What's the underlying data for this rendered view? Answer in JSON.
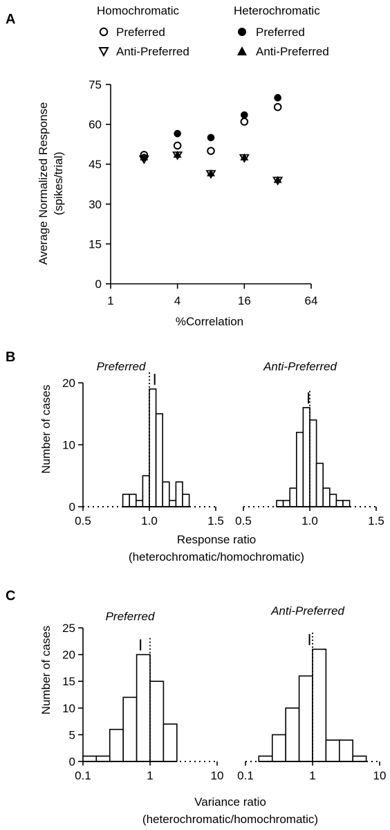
{
  "panels": {
    "A": {
      "letter": "A"
    },
    "B": {
      "letter": "B"
    },
    "C": {
      "letter": "C"
    }
  },
  "legend": {
    "homo_title": "Homochromatic",
    "hetero_title": "Heterochromatic",
    "homo_pref": "Preferred",
    "homo_anti": "Anti-Preferred",
    "hetero_pref": "Preferred",
    "hetero_anti": "Anti-Preferred"
  },
  "colors": {
    "ink": "#000000",
    "background": "#ffffff"
  },
  "chart_data": [
    {
      "id": "A",
      "type": "scatter",
      "xlabel": "%Correlation",
      "ylabel_line1": "Average Normalized Response",
      "ylabel_line2": "(spikes/trial)",
      "x_scale": "log2",
      "xlim": [
        1,
        64
      ],
      "ylim": [
        0,
        75
      ],
      "xticks": [
        1,
        4,
        16,
        64
      ],
      "xtick_labels": [
        "1",
        "4",
        "16",
        "64"
      ],
      "yticks": [
        0,
        15,
        30,
        45,
        60,
        75
      ],
      "ytick_labels": [
        "0",
        "15",
        "30",
        "45",
        "60",
        "75"
      ],
      "grid": false,
      "series": [
        {
          "name": "Homochromatic Preferred",
          "marker": "open-circle",
          "x": [
            2,
            4,
            8,
            16,
            32
          ],
          "y": [
            48.5,
            52,
            50,
            61,
            66.5
          ]
        },
        {
          "name": "Homochromatic Anti-Preferred",
          "marker": "open-triangle-down",
          "x": [
            2,
            4,
            8,
            16,
            32
          ],
          "y": [
            47,
            48.5,
            41.5,
            47.5,
            39
          ]
        },
        {
          "name": "Heterochromatic Preferred",
          "marker": "filled-circle",
          "x": [
            2,
            4,
            8,
            16,
            32
          ],
          "y": [
            47.5,
            56.5,
            55,
            63.5,
            70
          ]
        },
        {
          "name": "Heterochromatic Anti-Preferred",
          "marker": "filled-triangle-up",
          "x": [
            2,
            4,
            8,
            16,
            32
          ],
          "y": [
            47.5,
            48.5,
            41.5,
            47.5,
            39
          ]
        }
      ]
    },
    {
      "id": "B",
      "type": "bar",
      "xlabel_line1": "Response ratio",
      "xlabel_line2": "(heterochromatic/homochromatic)",
      "ylabel": "Number of cases",
      "ylim": [
        0,
        20
      ],
      "yticks": [
        0,
        10,
        20
      ],
      "ytick_labels": [
        "0",
        "10",
        "20"
      ],
      "xlim": [
        0.5,
        1.5
      ],
      "xticks": [
        0.5,
        1.0,
        1.5
      ],
      "xtick_labels": [
        "0.5",
        "1.0",
        "1.5"
      ],
      "bin_width": 0.05,
      "histograms": [
        {
          "title": "Preferred",
          "bin_starts": [
            0.8,
            0.85,
            0.9,
            0.95,
            1.0,
            1.05,
            1.1,
            1.15,
            1.2,
            1.25
          ],
          "counts": [
            2,
            2,
            1,
            5,
            19,
            15,
            4,
            1,
            4,
            2
          ],
          "mean_marker": 1.04,
          "reference_line": 1.0
        },
        {
          "title": "Anti-Preferred",
          "bin_starts": [
            0.75,
            0.8,
            0.85,
            0.9,
            0.95,
            1.0,
            1.05,
            1.1,
            1.15,
            1.2,
            1.25
          ],
          "counts": [
            1,
            1,
            3,
            12,
            16,
            14,
            7,
            3,
            2,
            1,
            1
          ],
          "mean_marker": 0.99,
          "reference_line": 1.0
        }
      ]
    },
    {
      "id": "C",
      "type": "bar",
      "xlabel_line1": "Variance ratio",
      "xlabel_line2": "(heterochromatic/homochromatic)",
      "ylabel": "Number of cases",
      "x_scale": "log10",
      "xlim": [
        0.1,
        10
      ],
      "xticks": [
        0.1,
        1,
        10
      ],
      "xtick_labels": [
        "0.1",
        "1",
        "10"
      ],
      "ylim": [
        0,
        25
      ],
      "yticks": [
        0,
        5,
        10,
        15,
        20,
        25
      ],
      "ytick_labels": [
        "0",
        "5",
        "10",
        "15",
        "20",
        "25"
      ],
      "histograms": [
        {
          "title": "Preferred",
          "bin_edges": [
            0.1,
            0.158,
            0.251,
            0.398,
            0.631,
            1.0,
            1.585,
            2.512
          ],
          "counts": [
            1,
            1,
            6,
            12,
            20,
            15,
            7
          ],
          "mean_marker": 0.72,
          "reference_line": 1.0
        },
        {
          "title": "Anti-Preferred",
          "bin_edges": [
            0.158,
            0.251,
            0.398,
            0.631,
            1.0,
            1.585,
            2.512,
            3.981,
            6.31
          ],
          "counts": [
            1,
            5,
            10,
            16,
            21,
            4,
            4,
            1
          ],
          "mean_marker": 0.9,
          "reference_line": 1.0
        }
      ]
    }
  ]
}
